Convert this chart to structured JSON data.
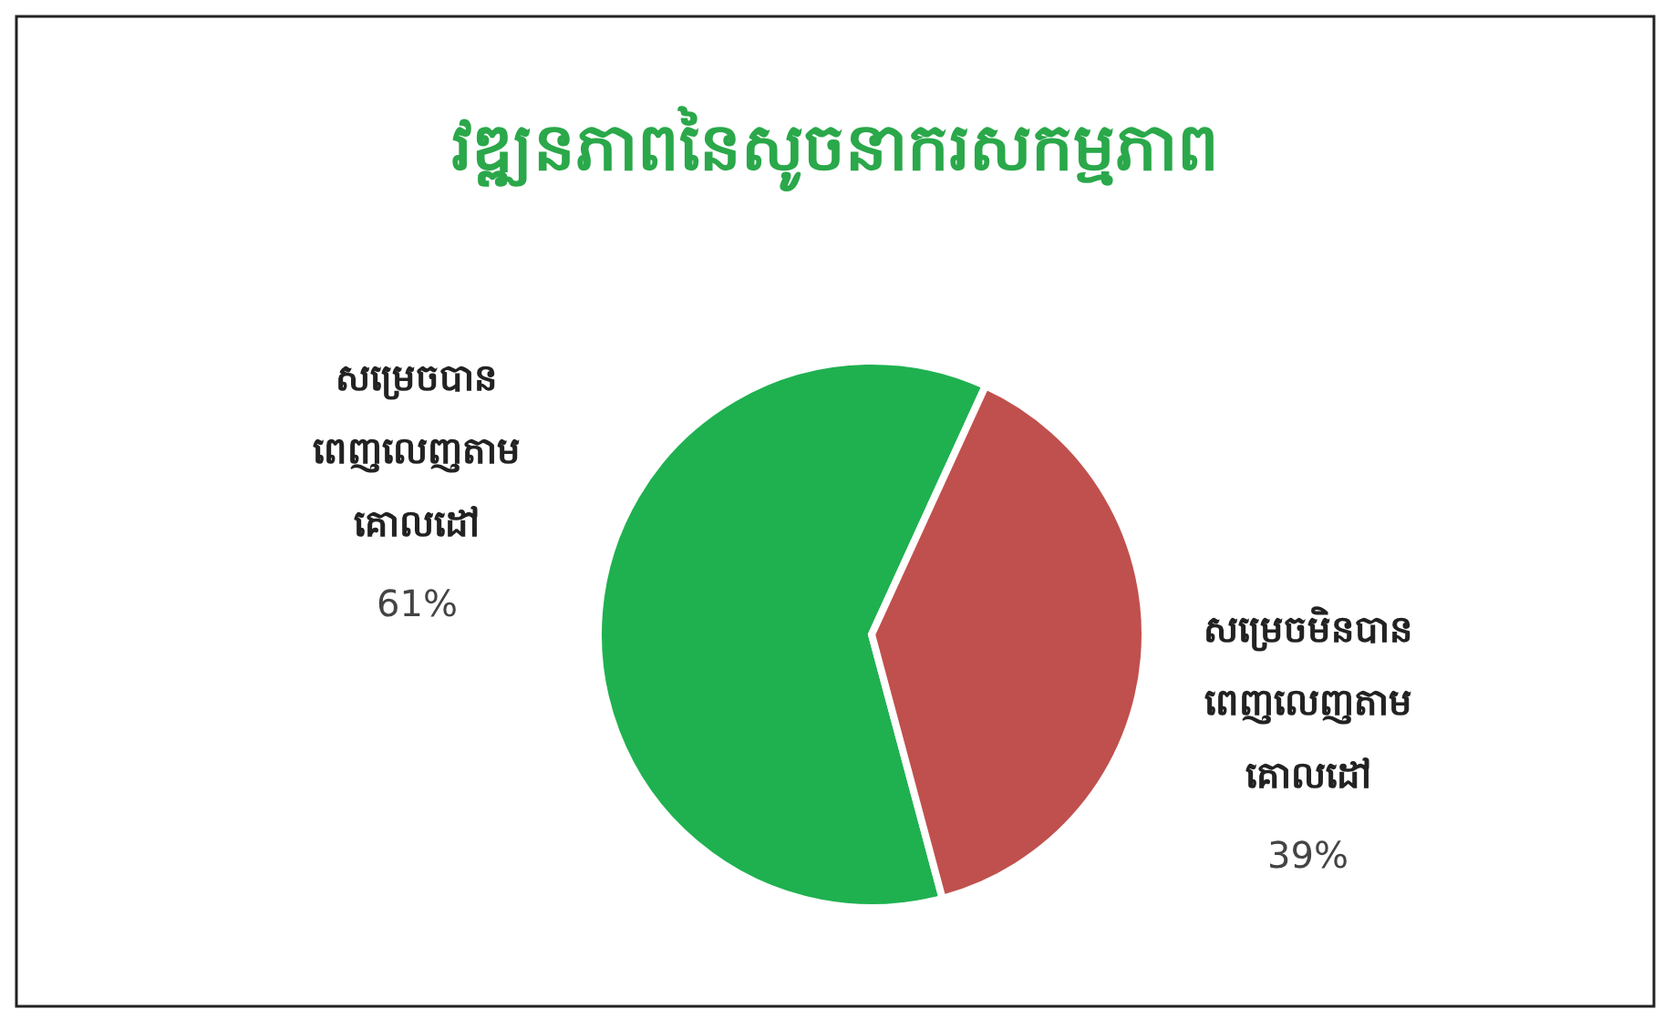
{
  "chart_data": {
    "type": "pie",
    "title": "វឌ្ឍនភាពនៃសូចនាករសកម្មភាព",
    "categories": [
      "សម្រេចបាន ពេញលេញតាម គោលដៅ",
      "សម្រេចមិនបាន ពេញលេញតាម គោលដៅ"
    ],
    "values": [
      61,
      39
    ],
    "colors": [
      "#1fb150",
      "#c0504d"
    ],
    "value_labels": [
      "61%",
      "39%"
    ],
    "legend": false
  }
}
